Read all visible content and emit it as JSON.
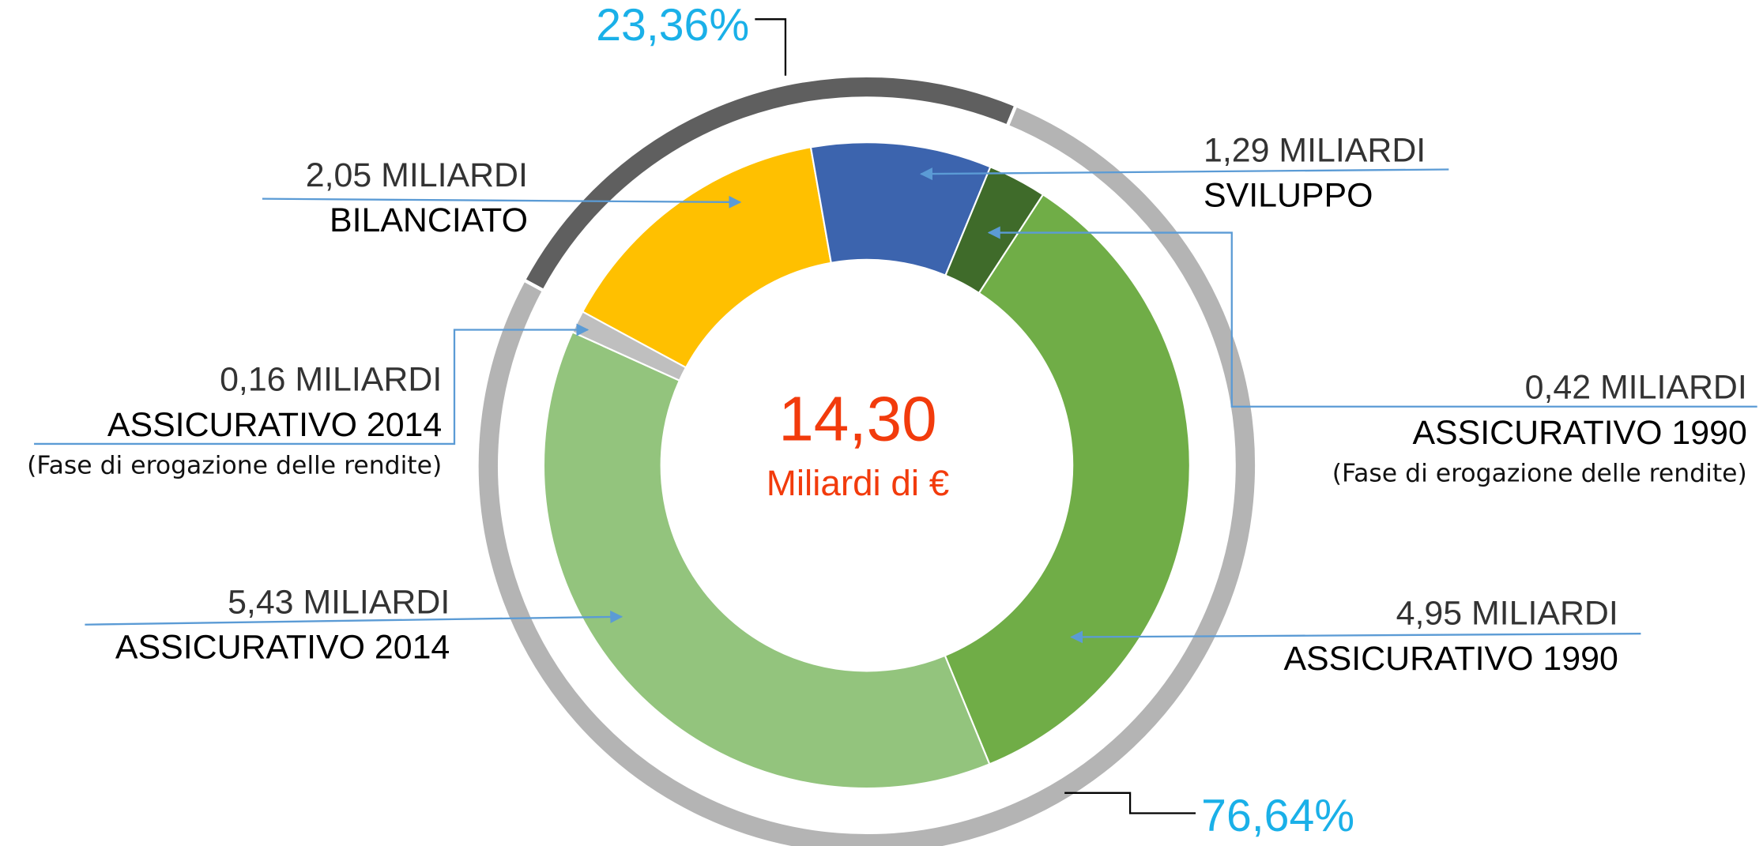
{
  "chart_data": {
    "type": "donut",
    "total": 14.3,
    "total_label": "14,30",
    "total_unit": "Miliardi di €",
    "series": [
      {
        "categories": [
          "BILANCIATO",
          "SVILUPPO",
          "ASSICURATIVO 1990",
          "ASSICURATIVO 1990",
          "ASSICURATIVO 2014",
          "ASSICURATIVO 2014"
        ],
        "values": [
          2.05,
          1.29,
          0.42,
          4.95,
          5.43,
          0.16
        ],
        "value_labels": [
          "2,05 MILIARDI",
          "1,29 MILIARDI",
          "0,42 MILIARDI",
          "4,95 MILIARDI",
          "5,43 MILIARDI",
          "0,16 MILIARDI"
        ],
        "subtitles": [
          null,
          null,
          "(Fase di erogazione delle rendite)",
          null,
          null,
          "(Fase di erogazione delle rendite)"
        ],
        "colors": [
          "#ffc000",
          "#3c64ae",
          "#3f6b2a",
          "#70ad47",
          "#93c47d",
          "#bfbfbf"
        ]
      },
      {
        "values": [
          23.36,
          76.64
        ],
        "value_labels": [
          "23,36%",
          "76,64%"
        ],
        "colors": [
          "#5f5f5f",
          "#b4b4b4"
        ]
      }
    ]
  }
}
